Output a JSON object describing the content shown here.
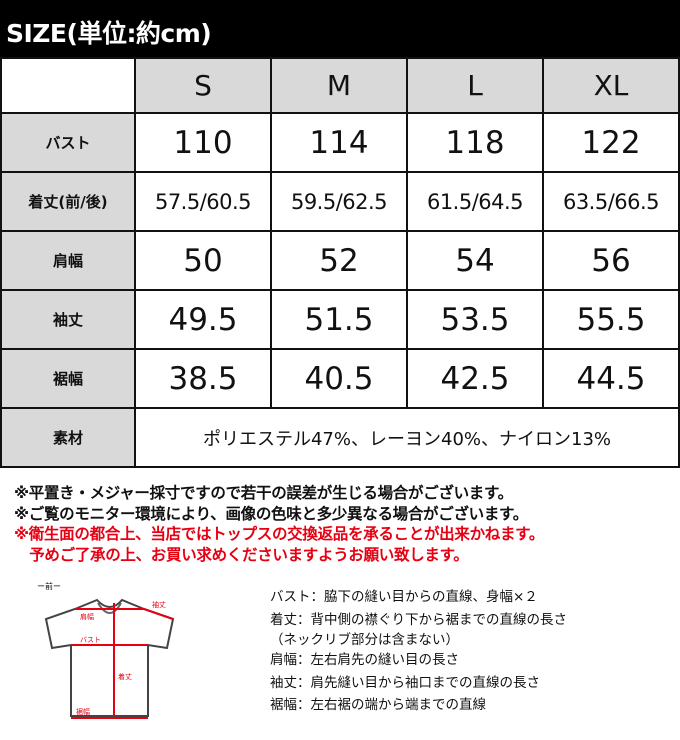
{
  "title": "SIZE(単位:約cm)",
  "sizes": [
    "S",
    "M",
    "L",
    "XL"
  ],
  "rows": [
    {
      "label": "バスト",
      "values": [
        "110",
        "114",
        "118",
        "122"
      ]
    },
    {
      "label": "着丈(前/後)",
      "values": [
        "57.5/60.5",
        "59.5/62.5",
        "61.5/64.5",
        "63.5/66.5"
      ]
    },
    {
      "label": "肩幅",
      "values": [
        "50",
        "52",
        "54",
        "56"
      ]
    },
    {
      "label": "袖丈",
      "values": [
        "49.5",
        "51.5",
        "53.5",
        "55.5"
      ]
    },
    {
      "label": "裾幅",
      "values": [
        "38.5",
        "40.5",
        "42.5",
        "44.5"
      ]
    }
  ],
  "material": {
    "label": "素材",
    "value": "ポリエステル47%、レーヨン40%、ナイロン13%"
  },
  "notes": [
    "※平置き・メジャー採寸ですので若干の誤差が生じる場合がございます。",
    "※ご覧のモニター環境により、画像の色味と多少異なる場合がございます。",
    "※衛生面の都合上、当店ではトップスの交換返品を承ることが出来かねます。",
    "　予めご了承の上、お買い求めくださいますようお願い致します。"
  ],
  "diagram": {
    "caption": "ー前ー",
    "labels": {
      "shoulder": "肩幅",
      "sleeve": "袖丈",
      "bust": "バスト",
      "length": "着丈",
      "hem": "裾幅"
    }
  },
  "legend": [
    "バスト：脇下の縫い目からの直線、身幅×２",
    "着丈：背中側の襟ぐり下から裾までの直線の長さ",
    "（ネックリブ部分は含まない）",
    "肩幅：左右肩先の縫い目の長さ",
    "袖丈：肩先縫い目から袖口までの直線の長さ",
    "裾幅：左右裾の端から端までの直線"
  ],
  "colors": {
    "accent": "#e60012",
    "header_cell": "#d9d9d9"
  }
}
